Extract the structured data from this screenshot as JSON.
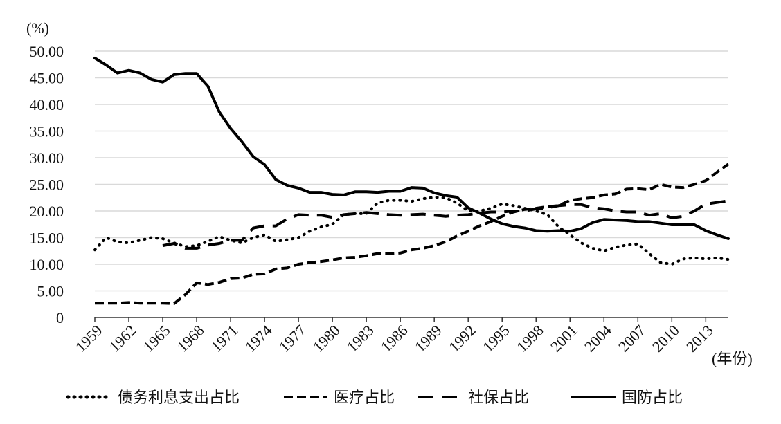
{
  "chart_data": {
    "type": "line",
    "ylabel": "(%)",
    "xlabel": "(年份)",
    "ylim": [
      0,
      50
    ],
    "xlim": [
      1959,
      2015
    ],
    "y_ticks": [
      {
        "value": 0,
        "label": "0"
      },
      {
        "value": 5,
        "label": "5.00"
      },
      {
        "value": 10,
        "label": "10.00"
      },
      {
        "value": 15,
        "label": "15.00"
      },
      {
        "value": 20,
        "label": "20.00"
      },
      {
        "value": 25,
        "label": "25.00"
      },
      {
        "value": 30,
        "label": "30.00"
      },
      {
        "value": 35,
        "label": "35.00"
      },
      {
        "value": 40,
        "label": "40.00"
      },
      {
        "value": 45,
        "label": "45.00"
      },
      {
        "value": 50,
        "label": "50.00"
      }
    ],
    "x_ticks": [
      {
        "value": 1959,
        "label": "1959"
      },
      {
        "value": 1962,
        "label": "1962"
      },
      {
        "value": 1965,
        "label": "1965"
      },
      {
        "value": 1968,
        "label": "1968"
      },
      {
        "value": 1971,
        "label": "1971"
      },
      {
        "value": 1974,
        "label": "1974"
      },
      {
        "value": 1977,
        "label": "1977"
      },
      {
        "value": 1980,
        "label": "1980"
      },
      {
        "value": 1983,
        "label": "1983"
      },
      {
        "value": 1986,
        "label": "1986"
      },
      {
        "value": 1989,
        "label": "1989"
      },
      {
        "value": 1992,
        "label": "1992"
      },
      {
        "value": 1995,
        "label": "1995"
      },
      {
        "value": 1998,
        "label": "1998"
      },
      {
        "value": 2001,
        "label": "2001"
      },
      {
        "value": 2004,
        "label": "2004"
      },
      {
        "value": 2007,
        "label": "2007"
      },
      {
        "value": 2010,
        "label": "2010"
      },
      {
        "value": 2013,
        "label": "2013"
      }
    ],
    "grid": true,
    "legend_position": "bottom",
    "series": [
      {
        "name": "债务利息支出占比",
        "style": "dotted",
        "color": "#000000",
        "x": [
          1959,
          1960,
          1961,
          1962,
          1963,
          1964,
          1965,
          1966,
          1967,
          1968,
          1969,
          1970,
          1971,
          1972,
          1973,
          1974,
          1975,
          1976,
          1977,
          1978,
          1979,
          1980,
          1981,
          1982,
          1983,
          1984,
          1985,
          1986,
          1987,
          1988,
          1989,
          1990,
          1991,
          1992,
          1993,
          1994,
          1995,
          1996,
          1997,
          1998,
          1999,
          2000,
          2001,
          2002,
          2003,
          2004,
          2005,
          2006,
          2007,
          2008,
          2009,
          2010,
          2011,
          2012,
          2013,
          2014,
          2015
        ],
        "values": [
          12.7,
          15.0,
          14.2,
          14.0,
          14.5,
          15.0,
          14.8,
          14.0,
          13.3,
          13.5,
          14.3,
          15.2,
          14.5,
          14.0,
          15.0,
          15.5,
          14.3,
          14.6,
          15.0,
          16.2,
          17.0,
          17.5,
          19.3,
          19.5,
          19.5,
          21.5,
          22.0,
          22.0,
          21.8,
          22.3,
          22.6,
          22.5,
          21.5,
          20.0,
          20.0,
          20.5,
          21.3,
          21.0,
          20.5,
          20.0,
          19.3,
          17.0,
          15.5,
          14.0,
          13.0,
          12.5,
          13.2,
          13.6,
          13.8,
          12.0,
          10.3,
          10.0,
          11.0,
          11.2,
          11.0,
          11.2,
          10.9
        ]
      },
      {
        "name": "医疗占比",
        "style": "short-dash",
        "color": "#000000",
        "x": [
          1959,
          1960,
          1961,
          1962,
          1963,
          1964,
          1965,
          1966,
          1967,
          1968,
          1969,
          1970,
          1971,
          1972,
          1973,
          1974,
          1975,
          1976,
          1977,
          1978,
          1979,
          1980,
          1981,
          1982,
          1983,
          1984,
          1985,
          1986,
          1987,
          1988,
          1989,
          1990,
          1991,
          1992,
          1993,
          1994,
          1995,
          1996,
          1997,
          1998,
          1999,
          2000,
          2001,
          2002,
          2003,
          2004,
          2005,
          2006,
          2007,
          2008,
          2009,
          2010,
          2011,
          2012,
          2013,
          2014,
          2015
        ],
        "values": [
          2.7,
          2.7,
          2.7,
          2.8,
          2.7,
          2.7,
          2.7,
          2.6,
          4.3,
          6.5,
          6.2,
          6.6,
          7.3,
          7.4,
          8.1,
          8.2,
          9.1,
          9.3,
          10.0,
          10.3,
          10.5,
          10.8,
          11.2,
          11.3,
          11.6,
          12.0,
          12.0,
          12.1,
          12.7,
          13.0,
          13.5,
          14.2,
          15.3,
          16.2,
          17.2,
          18.0,
          19.0,
          19.8,
          20.3,
          20.5,
          20.8,
          21.0,
          22.0,
          22.3,
          22.5,
          23.0,
          23.2,
          24.1,
          24.2,
          24.0,
          25.0,
          24.5,
          24.4,
          25.0,
          25.7,
          27.3,
          28.8
        ]
      },
      {
        "name": "社保占比",
        "style": "long-dash",
        "color": "#000000",
        "x": [
          1965,
          1966,
          1967,
          1968,
          1969,
          1970,
          1971,
          1972,
          1973,
          1974,
          1975,
          1976,
          1977,
          1978,
          1979,
          1980,
          1981,
          1982,
          1983,
          1984,
          1985,
          1986,
          1987,
          1988,
          1989,
          1990,
          1991,
          1992,
          1993,
          1994,
          1995,
          1996,
          1997,
          1998,
          1999,
          2000,
          2001,
          2002,
          2003,
          2004,
          2005,
          2006,
          2007,
          2008,
          2009,
          2010,
          2011,
          2012,
          2013,
          2014,
          2015
        ],
        "values": [
          13.5,
          13.9,
          13.0,
          13.0,
          13.6,
          13.9,
          14.5,
          14.5,
          16.8,
          17.2,
          17.2,
          18.5,
          19.3,
          19.2,
          19.2,
          18.8,
          19.3,
          19.5,
          19.7,
          19.5,
          19.3,
          19.2,
          19.3,
          19.4,
          19.2,
          19.0,
          19.2,
          19.3,
          19.6,
          19.8,
          19.8,
          20.0,
          20.0,
          20.4,
          20.6,
          21.0,
          21.2,
          21.2,
          20.6,
          20.4,
          20.0,
          19.8,
          19.8,
          19.2,
          19.5,
          18.7,
          19.0,
          20.0,
          21.3,
          21.6,
          21.9
        ]
      },
      {
        "name": "国防占比",
        "style": "solid",
        "color": "#000000",
        "x": [
          1959,
          1960,
          1961,
          1962,
          1963,
          1964,
          1965,
          1966,
          1967,
          1968,
          1969,
          1970,
          1971,
          1972,
          1973,
          1974,
          1975,
          1976,
          1977,
          1978,
          1979,
          1980,
          1981,
          1982,
          1983,
          1984,
          1985,
          1986,
          1987,
          1988,
          1989,
          1990,
          1991,
          1992,
          1993,
          1994,
          1995,
          1996,
          1997,
          1998,
          1999,
          2000,
          2001,
          2002,
          2003,
          2004,
          2005,
          2006,
          2007,
          2008,
          2009,
          2010,
          2011,
          2012,
          2013,
          2014,
          2015
        ],
        "values": [
          48.7,
          47.4,
          45.9,
          46.4,
          45.9,
          44.7,
          44.2,
          45.6,
          45.8,
          45.8,
          43.4,
          38.6,
          35.5,
          33.0,
          30.2,
          28.7,
          25.9,
          24.8,
          24.3,
          23.5,
          23.5,
          23.1,
          23.0,
          23.6,
          23.6,
          23.5,
          23.7,
          23.7,
          24.4,
          24.3,
          23.4,
          22.9,
          22.6,
          20.6,
          19.6,
          18.5,
          17.6,
          17.1,
          16.8,
          16.3,
          16.2,
          16.3,
          16.2,
          16.7,
          17.8,
          18.4,
          18.3,
          18.2,
          18.0,
          18.0,
          17.7,
          17.4,
          17.4,
          17.4,
          16.3,
          15.5,
          14.8
        ]
      }
    ]
  }
}
